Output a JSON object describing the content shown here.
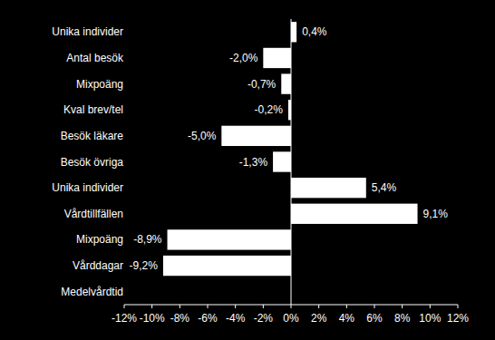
{
  "chart_data": {
    "type": "bar",
    "orientation": "horizontal",
    "color": "#ffffff",
    "data_labels": true,
    "grid": false,
    "categories": [
      "Unika individer",
      "Antal besök",
      "Mixpoäng",
      "Kval brev/tel",
      "Besök läkare",
      "Besök övriga",
      "Unika individer",
      "Vårdtillfällen",
      "Mixpoäng",
      "Vårddagar",
      "Medelvårdtid"
    ],
    "values": [
      0.4,
      -2.0,
      -0.7,
      -0.2,
      -5.0,
      -1.3,
      5.4,
      9.1,
      -8.9,
      -9.2,
      null
    ],
    "value_labels": [
      "0,4%",
      "-2,0%",
      "-0,7%",
      "-0,2%",
      "-5,0%",
      "-1,3%",
      "5,4%",
      "9,1%",
      "-8,9%",
      "-9,2%",
      null
    ],
    "xlim": [
      -12,
      12
    ],
    "xticks": [
      {
        "value": -12,
        "label": "-12%"
      },
      {
        "value": -10,
        "label": "-10%"
      },
      {
        "value": -8,
        "label": "-8%"
      },
      {
        "value": -6,
        "label": "-6%"
      },
      {
        "value": -4,
        "label": "-4%"
      },
      {
        "value": -2,
        "label": "-2%"
      },
      {
        "value": 0,
        "label": "0%"
      },
      {
        "value": 2,
        "label": "2%"
      },
      {
        "value": 4,
        "label": "4%"
      },
      {
        "value": 6,
        "label": "6%"
      },
      {
        "value": 8,
        "label": "8%"
      },
      {
        "value": 10,
        "label": "10%"
      },
      {
        "value": 12,
        "label": "12%"
      }
    ]
  }
}
